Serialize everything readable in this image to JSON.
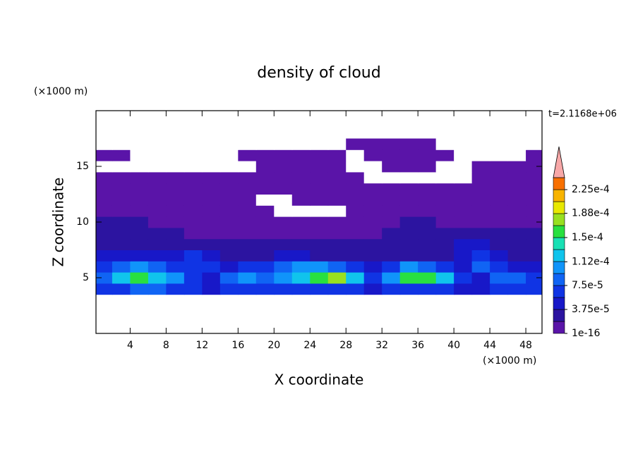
{
  "chart_data": {
    "type": "contour",
    "title": "density of cloud",
    "annotation": "t=2.1168e+06",
    "x_label": "X coordinate",
    "y_label": "Z coordinate",
    "x_unit": "(×1000 m)",
    "y_unit": "(×1000 m)",
    "xlim": [
      0.2,
      49.8
    ],
    "ylim": [
      0,
      20
    ],
    "xticks": [
      4,
      8,
      12,
      16,
      20,
      24,
      28,
      32,
      36,
      40,
      44,
      48
    ],
    "yticks": [
      5,
      10,
      15
    ],
    "x": [
      1,
      3,
      5,
      7,
      9,
      11,
      13,
      15,
      17,
      19,
      21,
      23,
      25,
      27,
      29,
      31,
      33,
      35,
      37,
      39,
      41,
      43,
      45,
      47,
      49
    ],
    "y": [
      4,
      5,
      6,
      7,
      8,
      9,
      10,
      11,
      12,
      13,
      14,
      15,
      16,
      17
    ],
    "z": [
      [
        6e-05,
        7e-05,
        9e-05,
        9e-05,
        7e-05,
        6e-05,
        5e-05,
        6e-05,
        7e-05,
        7e-05,
        6e-05,
        7e-05,
        7e-05,
        7e-05,
        6e-05,
        5e-05,
        7e-05,
        7e-05,
        7e-05,
        6e-05,
        5e-05,
        5e-05,
        6e-05,
        7e-05,
        6e-05
      ],
      [
        9e-05,
        0.00013,
        0.00016,
        0.00013,
        0.00011,
        7e-05,
        5e-05,
        9e-05,
        0.00011,
        9e-05,
        0.00011,
        0.00013,
        0.00016,
        0.00017,
        0.00013,
        7e-05,
        0.00011,
        0.00016,
        0.00016,
        0.00013,
        7e-05,
        5e-05,
        9e-05,
        9e-05,
        7e-05
      ],
      [
        7e-05,
        9e-05,
        0.00011,
        9e-05,
        7e-05,
        7e-05,
        7e-05,
        5e-05,
        7e-05,
        7e-05,
        9e-05,
        0.00011,
        0.00011,
        9e-05,
        7e-05,
        5e-05,
        7e-05,
        0.00011,
        9e-05,
        7e-05,
        5e-05,
        9e-05,
        7e-05,
        5e-05,
        5e-05
      ],
      [
        5e-05,
        5e-05,
        5e-05,
        5e-05,
        5e-05,
        7e-05,
        5e-05,
        3e-05,
        3e-05,
        3e-05,
        5e-05,
        5e-05,
        3e-05,
        3e-05,
        3e-05,
        3e-05,
        3e-05,
        3e-05,
        3e-05,
        3e-05,
        5e-05,
        7e-05,
        5e-05,
        3e-05,
        3e-05
      ],
      [
        3e-05,
        3e-05,
        3e-05,
        3e-05,
        3e-05,
        3e-05,
        3e-05,
        3e-05,
        3e-05,
        3e-05,
        3e-05,
        3e-05,
        3e-05,
        3e-05,
        3e-05,
        3e-05,
        3e-05,
        3e-05,
        3e-05,
        3e-05,
        5e-05,
        5e-05,
        3e-05,
        3e-05,
        3e-05
      ],
      [
        3e-05,
        3e-05,
        3e-05,
        3e-05,
        3e-05,
        1e-05,
        1e-05,
        1e-05,
        1e-05,
        1e-05,
        1e-05,
        1e-05,
        1e-05,
        1e-05,
        1e-05,
        1e-05,
        3e-05,
        3e-05,
        3e-05,
        3e-05,
        3e-05,
        3e-05,
        3e-05,
        3e-05,
        3e-05
      ],
      [
        3e-05,
        3e-05,
        3e-05,
        1e-05,
        1e-05,
        1e-05,
        1e-05,
        1e-05,
        1e-05,
        1e-05,
        1e-05,
        1e-05,
        1e-05,
        1e-05,
        1e-05,
        1e-05,
        1e-05,
        3e-05,
        3e-05,
        1e-05,
        1e-05,
        1e-05,
        1e-05,
        1e-05,
        1e-05
      ],
      [
        1e-05,
        1e-05,
        1e-05,
        1e-05,
        1e-05,
        1e-05,
        1e-05,
        1e-05,
        1e-05,
        1e-05,
        0,
        0,
        0,
        0,
        1e-05,
        1e-05,
        1e-05,
        1e-05,
        1e-05,
        1e-05,
        1e-05,
        1e-05,
        1e-05,
        1e-05,
        1e-05
      ],
      [
        1e-05,
        1e-05,
        1e-05,
        1e-05,
        1e-05,
        1e-05,
        1e-05,
        1e-05,
        1e-05,
        0,
        0,
        1e-05,
        1e-05,
        1e-05,
        1e-05,
        1e-05,
        1e-05,
        1e-05,
        1e-05,
        1e-05,
        1e-05,
        1e-05,
        1e-05,
        1e-05,
        1e-05
      ],
      [
        1e-05,
        1e-05,
        1e-05,
        1e-05,
        1e-05,
        1e-05,
        1e-05,
        1e-05,
        1e-05,
        1e-05,
        1e-05,
        1e-05,
        1e-05,
        1e-05,
        1e-05,
        1e-05,
        1e-05,
        1e-05,
        1e-05,
        1e-05,
        1e-05,
        1e-05,
        1e-05,
        1e-05,
        1e-05
      ],
      [
        1e-05,
        1e-05,
        1e-05,
        1e-05,
        1e-05,
        1e-05,
        1e-05,
        1e-05,
        1e-05,
        1e-05,
        1e-05,
        1e-05,
        1e-05,
        1e-05,
        1e-05,
        0,
        0,
        0,
        0,
        0,
        0,
        1e-05,
        1e-05,
        1e-05,
        1e-05
      ],
      [
        0,
        0,
        0,
        0,
        0,
        0,
        0,
        0,
        0,
        1e-05,
        1e-05,
        1e-05,
        1e-05,
        1e-05,
        0,
        0,
        1e-05,
        1e-05,
        1e-05,
        0,
        0,
        1e-05,
        1e-05,
        1e-05,
        1e-05
      ],
      [
        1e-05,
        1e-05,
        0,
        0,
        0,
        0,
        0,
        0,
        1e-05,
        1e-05,
        1e-05,
        1e-05,
        1e-05,
        1e-05,
        0,
        1e-05,
        1e-05,
        1e-05,
        1e-05,
        1e-05,
        0,
        0,
        0,
        0,
        1e-05
      ],
      [
        0,
        0,
        0,
        0,
        0,
        0,
        0,
        0,
        0,
        0,
        0,
        0,
        0,
        0,
        1e-05,
        1e-05,
        1e-05,
        1e-05,
        1e-05,
        0,
        0,
        0,
        0,
        0,
        0
      ]
    ],
    "levels": [
      1e-16,
      1.875e-05,
      3.75e-05,
      5.625e-05,
      7.5e-05,
      9.375e-05,
      0.0001125,
      0.00013125,
      0.00015,
      0.00016875,
      0.0001875,
      0.00020625,
      0.000225,
      0.00024375
    ],
    "colors": [
      "#5a14a8",
      "#2c14a0",
      "#1818c8",
      "#1034e4",
      "#1064f4",
      "#1094fa",
      "#10c4ec",
      "#18e0b4",
      "#28e040",
      "#98e020",
      "#e8e800",
      "#f8b400",
      "#f87000"
    ],
    "extend_color": "#f8a8a8",
    "clim": [
      0,
      0.00024375
    ],
    "cticks": [
      {
        "value": 1e-16,
        "label": "1e-16"
      },
      {
        "value": 3.75e-05,
        "label": "3.75e-5"
      },
      {
        "value": 7.5e-05,
        "label": "7.5e-5"
      },
      {
        "value": 0.000112,
        "label": "1.12e-4"
      },
      {
        "value": 0.00015,
        "label": "1.5e-4"
      },
      {
        "value": 0.000188,
        "label": "1.88e-4"
      },
      {
        "value": 0.000225,
        "label": "2.25e-4"
      }
    ]
  }
}
